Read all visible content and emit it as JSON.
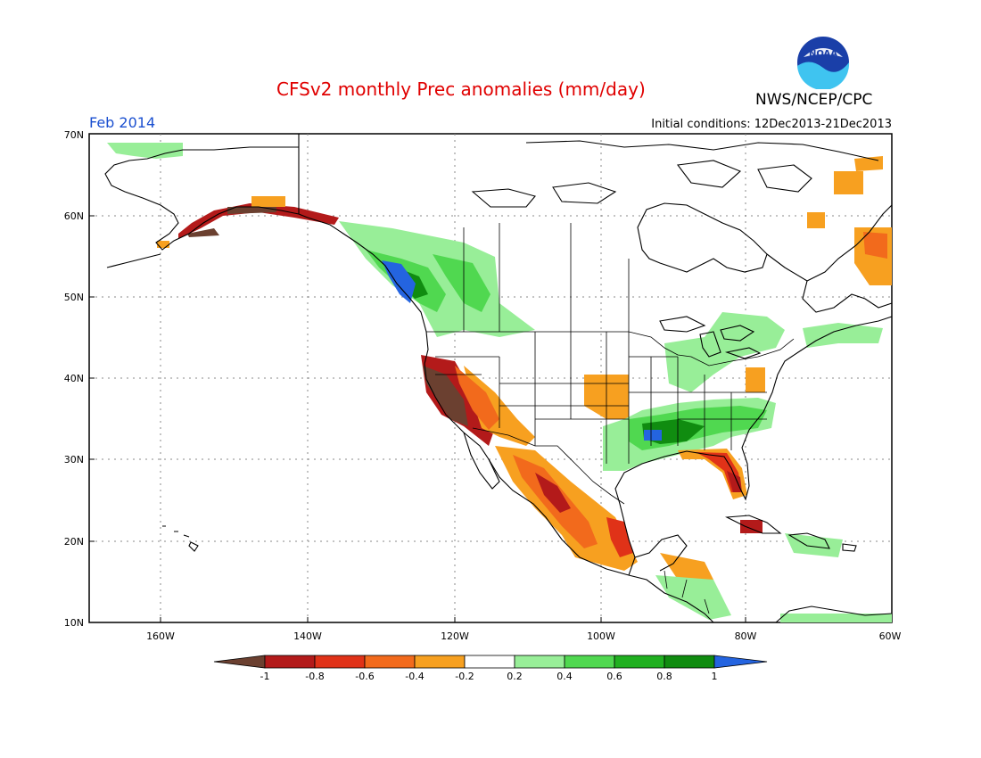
{
  "header": {
    "title": "CFSv2 monthly Prec anomalies (mm/day)",
    "month": "Feb 2014",
    "initial_conditions": "Initial conditions: 12Dec2013-21Dec2013",
    "agency": "NWS/NCEP/CPC",
    "logo_text": "NOAA"
  },
  "map": {
    "lat_ticks": [
      "70N",
      "60N",
      "50N",
      "40N",
      "30N",
      "20N",
      "10N"
    ],
    "lon_ticks": [
      "160W",
      "140W",
      "120W",
      "100W",
      "80W",
      "60W"
    ],
    "lat_range": [
      10,
      70
    ],
    "lon_range": [
      -172,
      -60
    ]
  },
  "colorbar": {
    "labels": [
      "-1",
      "-0.8",
      "-0.6",
      "-0.4",
      "-0.2",
      "0.2",
      "0.4",
      "0.6",
      "0.8",
      "1"
    ],
    "colors": {
      "below_-1": "#6b4030",
      "-1_-0.8": "#b31a1a",
      "-0.8_-0.6": "#e03218",
      "-0.6_-0.4": "#f26a1c",
      "-0.4_-0.2": "#f7a020",
      "-0.2_0.2": "#ffffff",
      "0.2_0.4": "#98ee98",
      "0.4_0.6": "#50d850",
      "0.6_0.8": "#20b020",
      "0.8_1": "#108c10",
      "above_1": "#2464e0"
    }
  }
}
